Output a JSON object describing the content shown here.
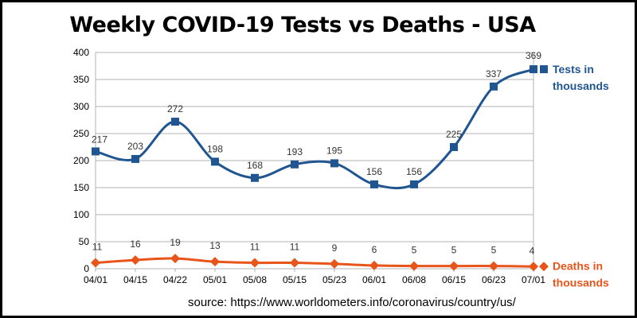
{
  "chart_data": {
    "type": "line",
    "title": "Weekly COVID-19 Tests vs Deaths - USA",
    "categories": [
      "04/01",
      "04/15",
      "04/22",
      "05/01",
      "05/08",
      "05/15",
      "05/23",
      "06/01",
      "06/08",
      "06/15",
      "06/23",
      "07/01"
    ],
    "series": [
      {
        "name": "Tests in thousands",
        "name_lines": [
          "Tests in",
          "thousands"
        ],
        "values": [
          217,
          203,
          272,
          198,
          168,
          193,
          195,
          156,
          156,
          225,
          337,
          369
        ],
        "color": "#1f5591",
        "marker": "square"
      },
      {
        "name": "Deaths in thousands",
        "name_lines": [
          "Deaths in",
          "thousands"
        ],
        "values": [
          11,
          16,
          19,
          13,
          11,
          11,
          9,
          6,
          5,
          5,
          5,
          4
        ],
        "color": "#e8541a",
        "marker": "diamond"
      }
    ],
    "yticks": [
      0,
      50,
      100,
      150,
      200,
      250,
      300,
      350,
      400
    ],
    "ylim": [
      0,
      400
    ],
    "grid": "horizontal",
    "legend": "right, at line ends",
    "source": "source: https://www.worldometers.info/coronavirus/country/us/"
  }
}
